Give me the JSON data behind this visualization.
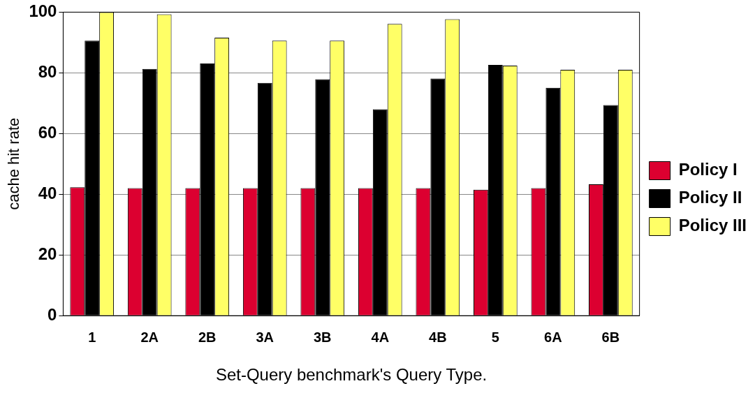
{
  "chart_data": {
    "type": "bar",
    "xlabel": "Set-Query benchmark's Query Type.",
    "ylabel": "cache hit rate",
    "categories": [
      "1",
      "2A",
      "2B",
      "3A",
      "3B",
      "4A",
      "4B",
      "5",
      "6A",
      "6B"
    ],
    "series": [
      {
        "name": "Policy I",
        "color": "#dc0030",
        "values": [
          42.3,
          42,
          42,
          42,
          42,
          42,
          42,
          41.5,
          42,
          43.3
        ]
      },
      {
        "name": "Policy II",
        "color": "#000000",
        "values": [
          90.6,
          81.3,
          83.1,
          76.7,
          77.9,
          68,
          78.1,
          82.6,
          75.1,
          69.4
        ]
      },
      {
        "name": "Policy III",
        "color": "#ffff66",
        "values": [
          100,
          99.3,
          91.6,
          90.6,
          90.6,
          96.1,
          97.7,
          82.4,
          81,
          81
        ]
      }
    ],
    "ylim": [
      0,
      100
    ],
    "yticks": [
      0,
      20,
      40,
      60,
      80,
      100
    ],
    "grid": "y",
    "legend": "right"
  }
}
